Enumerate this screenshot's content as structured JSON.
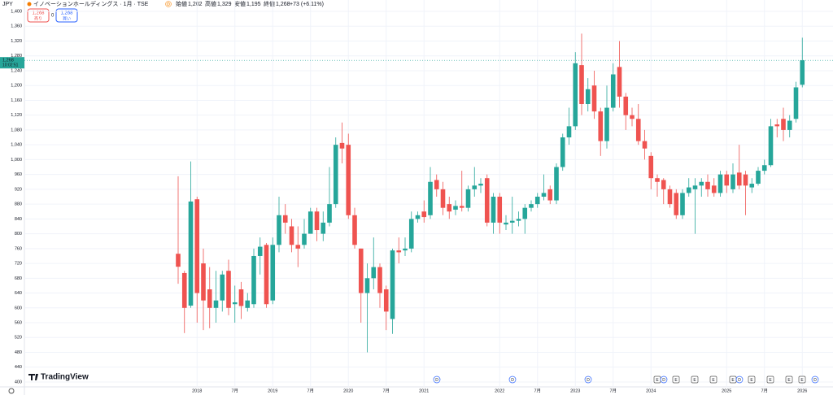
{
  "header": {
    "currency": "JPY",
    "symbol": "イノベーションホールディングス · 1月 · TSE",
    "badge": "D",
    "ohlc": [
      {
        "label": "始値",
        "value": "1,202"
      },
      {
        "label": "高値",
        "value": "1,329"
      },
      {
        "label": "安値",
        "value": "1,195"
      },
      {
        "label": "終値",
        "value": "1,268"
      }
    ],
    "change": "+73 (+6.11%)",
    "sell": {
      "price": "1,268",
      "label": "売り"
    },
    "spread": "0",
    "buy": {
      "price": "1,268",
      "label": "買い"
    }
  },
  "price_tag": {
    "price": "1,268",
    "countdown": "10:02:51"
  },
  "logo": "TradingView",
  "events": [
    "D",
    "D",
    "D",
    "E",
    "D",
    "E",
    "E",
    "E",
    "E",
    "D",
    "E",
    "E",
    "E",
    "E",
    "D"
  ],
  "chart_data": {
    "type": "candlestick",
    "categories": [
      null,
      null,
      null,
      "2018",
      null,
      null,
      null,
      null,
      null,
      "7月",
      null,
      null,
      null,
      null,
      null,
      "2019",
      null,
      null,
      null,
      null,
      null,
      "7月",
      null,
      null,
      null,
      null,
      null,
      "2020",
      null,
      null,
      null,
      null,
      null,
      "7月",
      null,
      null,
      null,
      null,
      null,
      "2021",
      null,
      null,
      null,
      null,
      null,
      null,
      null,
      null,
      null,
      null,
      null,
      "2022",
      null,
      null,
      null,
      null,
      null,
      "7月",
      null,
      null,
      null,
      null,
      null,
      "2023",
      null,
      null,
      null,
      null,
      null,
      "7月",
      null,
      null,
      null,
      null,
      null,
      "2024",
      null,
      null,
      null,
      null,
      null,
      null,
      null,
      null,
      null,
      null,
      null,
      "2025",
      null,
      null,
      null,
      null,
      null,
      "7月",
      null,
      null,
      null,
      null,
      null,
      "2026"
    ],
    "open": [
      746,
      694,
      606,
      893,
      720,
      650,
      600,
      620,
      700,
      610,
      650,
      600,
      610,
      740,
      770,
      620,
      770,
      850,
      820,
      770,
      770,
      800,
      860,
      800,
      830,
      880,
      1045,
      1040,
      850,
      760,
      640,
      680,
      710,
      650,
      570,
      755,
      755,
      760,
      840,
      860,
      850,
      945,
      920,
      880,
      865,
      875,
      870,
      920,
      930,
      950,
      830,
      900,
      825,
      830,
      835,
      840,
      870,
      880,
      900,
      920,
      890,
      980,
      1060,
      1090,
      1255,
      1150,
      1200,
      1130,
      1050,
      1140,
      1250,
      1170,
      1120,
      1110,
      1050,
      1010,
      950,
      945,
      920,
      910,
      850,
      910,
      920,
      930,
      940,
      930,
      910,
      960,
      920,
      965,
      960,
      925,
      935,
      970,
      985,
      1095,
      1110,
      1080,
      1110,
      1202
    ],
    "high": [
      955,
      700,
      995,
      900,
      760,
      710,
      700,
      700,
      730,
      660,
      670,
      640,
      760,
      790,
      775,
      790,
      900,
      880,
      840,
      820,
      840,
      870,
      870,
      860,
      980,
      1060,
      1100,
      1070,
      870,
      760,
      720,
      790,
      720,
      660,
      760,
      790,
      790,
      860,
      860,
      890,
      980,
      960,
      940,
      900,
      890,
      970,
      930,
      980,
      950,
      960,
      910,
      910,
      850,
      900,
      860,
      880,
      890,
      910,
      960,
      930,
      990,
      1070,
      1140,
      1290,
      1340,
      1220,
      1240,
      1140,
      1200,
      1260,
      1320,
      1180,
      1140,
      1150,
      1080,
      1020,
      960,
      950,
      930,
      920,
      920,
      950,
      950,
      950,
      960,
      950,
      970,
      970,
      990,
      1040,
      970,
      950,
      980,
      1000,
      1110,
      1110,
      1140,
      1120,
      1210,
      1329
    ],
    "low": [
      665,
      532,
      600,
      560,
      540,
      545,
      560,
      590,
      580,
      560,
      570,
      590,
      600,
      690,
      600,
      610,
      750,
      800,
      750,
      710,
      760,
      800,
      780,
      780,
      820,
      870,
      990,
      840,
      760,
      560,
      480,
      650,
      600,
      540,
      530,
      720,
      740,
      750,
      830,
      830,
      840,
      900,
      850,
      840,
      850,
      860,
      860,
      900,
      910,
      820,
      800,
      800,
      810,
      800,
      820,
      800,
      860,
      870,
      890,
      880,
      880,
      970,
      1040,
      1080,
      1120,
      1130,
      1110,
      1010,
      1030,
      1130,
      1140,
      1080,
      1090,
      1040,
      1000,
      920,
      900,
      880,
      870,
      840,
      840,
      900,
      800,
      900,
      900,
      900,
      900,
      910,
      910,
      920,
      850,
      910,
      930,
      960,
      980,
      1060,
      1050,
      1060,
      1100,
      1195
    ],
    "close": [
      711,
      600,
      887,
      640,
      620,
      600,
      620,
      690,
      600,
      615,
      605,
      620,
      740,
      765,
      610,
      770,
      850,
      830,
      770,
      760,
      800,
      860,
      810,
      830,
      880,
      1040,
      1030,
      850,
      770,
      640,
      680,
      710,
      640,
      590,
      755,
      750,
      760,
      840,
      850,
      845,
      940,
      920,
      870,
      860,
      875,
      870,
      920,
      930,
      935,
      830,
      900,
      830,
      830,
      835,
      840,
      870,
      880,
      900,
      910,
      890,
      980,
      1060,
      1090,
      1260,
      1150,
      1190,
      1130,
      1050,
      1140,
      1230,
      1170,
      1120,
      1110,
      1050,
      1030,
      950,
      940,
      920,
      880,
      850,
      910,
      925,
      930,
      940,
      920,
      910,
      960,
      930,
      960,
      930,
      930,
      935,
      970,
      985,
      1090,
      1090,
      1080,
      1105,
      1195,
      1268
    ],
    "up_color": "#26a69a",
    "down_color": "#ef5350",
    "ylim": [
      400,
      1400
    ],
    "yticks": [
      400,
      440,
      480,
      520,
      560,
      600,
      640,
      680,
      720,
      760,
      800,
      840,
      880,
      920,
      960,
      {
        "value": 1000,
        "label": "1,000"
      },
      {
        "value": 1040,
        "label": "1,040"
      },
      {
        "value": 1080,
        "label": "1,080"
      },
      {
        "value": 1120,
        "label": "1,120"
      },
      {
        "value": 1160,
        "label": "1,160"
      },
      {
        "value": 1200,
        "label": "1,200"
      },
      {
        "value": 1240,
        "label": "1,240"
      },
      {
        "value": 1280,
        "label": "1,280"
      },
      {
        "value": 1320,
        "label": "1,320"
      },
      {
        "value": 1360,
        "label": "1,360"
      },
      {
        "value": 1400,
        "label": "1,400"
      }
    ],
    "grid": true
  }
}
